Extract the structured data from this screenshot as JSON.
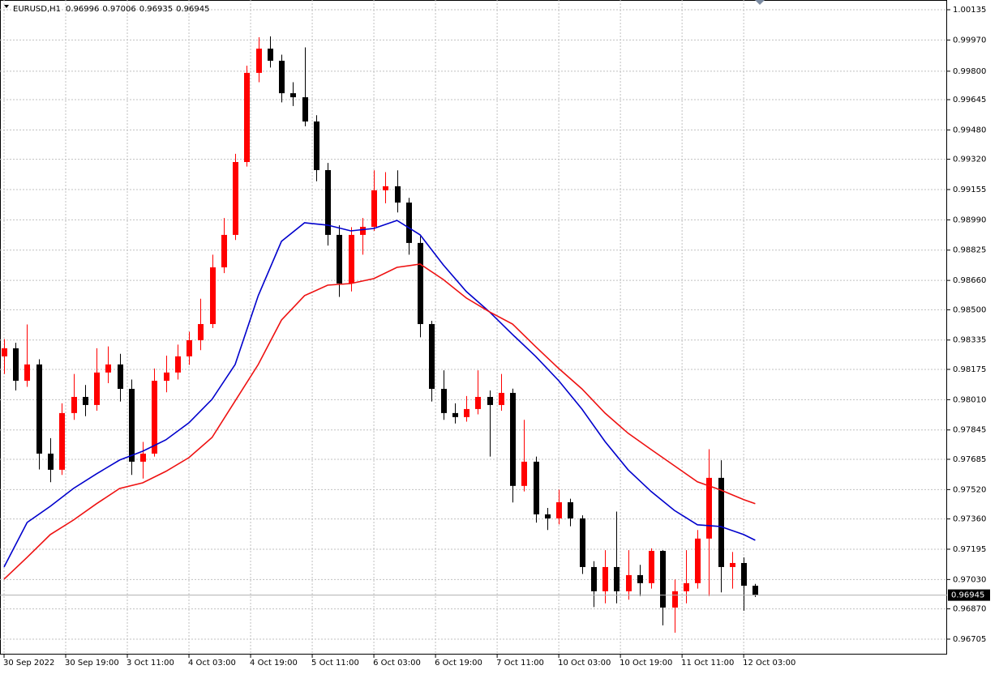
{
  "chart_data": {
    "type": "candlestick",
    "symbol": "EURUSD,H1",
    "up_color": "#ff0000",
    "down_color": "#000000",
    "grid": true,
    "xlim": [
      -1.05,
      244.8
    ],
    "ylim": [
      0.96621,
      1.00188
    ],
    "xticks": [
      {
        "value": 0,
        "label": "30 Sep 2022"
      },
      {
        "value": 16,
        "label": "30 Sep 19:00"
      },
      {
        "value": 32,
        "label": "3 Oct 11:00"
      },
      {
        "value": 48,
        "label": "4 Oct 03:00"
      },
      {
        "value": 64,
        "label": "4 Oct 19:00"
      },
      {
        "value": 80,
        "label": "5 Oct 11:00"
      },
      {
        "value": 96,
        "label": "6 Oct 03:00"
      },
      {
        "value": 112,
        "label": "6 Oct 19:00"
      },
      {
        "value": 128,
        "label": "7 Oct 11:00"
      },
      {
        "value": 144,
        "label": "10 Oct 03:00"
      },
      {
        "value": 160,
        "label": "10 Oct 19:00"
      },
      {
        "value": 176,
        "label": "11 Oct 11:00"
      },
      {
        "value": 192,
        "label": "12 Oct 03:00"
      }
    ],
    "yticks": [
      {
        "value": 1.00135,
        "label": "1.00135"
      },
      {
        "value": 0.9997,
        "label": "0.99970"
      },
      {
        "value": 0.998,
        "label": "0.99800"
      },
      {
        "value": 0.99645,
        "label": "0.99645"
      },
      {
        "value": 0.9948,
        "label": "0.99480"
      },
      {
        "value": 0.9932,
        "label": "0.99320"
      },
      {
        "value": 0.99155,
        "label": "0.99155"
      },
      {
        "value": 0.9899,
        "label": "0.98990"
      },
      {
        "value": 0.98825,
        "label": "0.98825"
      },
      {
        "value": 0.9866,
        "label": "0.98660"
      },
      {
        "value": 0.985,
        "label": "0.98500"
      },
      {
        "value": 0.98335,
        "label": "0.98335"
      },
      {
        "value": 0.98175,
        "label": "0.98175"
      },
      {
        "value": 0.9801,
        "label": "0.98010"
      },
      {
        "value": 0.97845,
        "label": "0.97845"
      },
      {
        "value": 0.97685,
        "label": "0.97685"
      },
      {
        "value": 0.9752,
        "label": "0.97520"
      },
      {
        "value": 0.9736,
        "label": "0.97360"
      },
      {
        "value": 0.97195,
        "label": "0.97195"
      },
      {
        "value": 0.9703,
        "label": "0.97030"
      },
      {
        "value": 0.9687,
        "label": "0.96870"
      },
      {
        "value": 0.96705,
        "label": "0.96705"
      }
    ],
    "x": [
      0,
      3,
      6,
      9,
      12,
      15,
      18,
      21,
      24,
      27,
      30,
      33,
      36,
      39,
      42,
      45,
      48,
      51,
      54,
      57,
      60,
      63,
      66,
      69,
      72,
      75,
      78,
      81,
      84,
      87,
      90,
      93,
      96,
      99,
      102,
      105,
      108,
      111,
      114,
      117,
      120,
      123,
      126,
      129,
      132,
      135,
      138,
      141,
      144,
      147,
      150,
      153,
      156,
      159,
      162,
      165,
      168,
      171,
      174,
      177,
      180,
      183,
      186,
      189,
      192,
      195
    ],
    "open": [
      0.98246,
      0.9829,
      0.98113,
      0.98202,
      0.97716,
      0.97628,
      0.97937,
      0.98025,
      0.97981,
      0.98158,
      0.98202,
      0.98069,
      0.97672,
      0.97716,
      0.98113,
      0.98158,
      0.98246,
      0.98334,
      0.98422,
      0.98731,
      0.98908,
      0.99305,
      0.99791,
      0.99923,
      0.99857,
      0.9968,
      0.99658,
      0.99526,
      0.99261,
      0.98908,
      0.98643,
      0.98908,
      0.98952,
      0.99151,
      0.99173,
      0.99084,
      0.98864,
      0.98422,
      0.98069,
      0.97937,
      0.97915,
      0.97959,
      0.98025,
      0.97981,
      0.98047,
      0.9754,
      0.97672,
      0.97385,
      0.97363,
      0.97451,
      0.97363,
      0.97098,
      0.96966,
      0.97098,
      0.96966,
      0.97054,
      0.9701,
      0.97186,
      0.96877,
      0.96966,
      0.9701,
      0.97253,
      0.97584,
      0.97098,
      0.9712,
      0.96996
    ],
    "high": [
      0.9834,
      0.9832,
      0.9842,
      0.9823,
      0.978,
      0.9799,
      0.9815,
      0.9809,
      0.9829,
      0.983,
      0.9826,
      0.9812,
      0.9778,
      0.9818,
      0.9825,
      0.9831,
      0.9838,
      0.9856,
      0.988,
      0.99,
      0.9935,
      0.9983,
      0.99985,
      0.9999,
      0.9989,
      0.9974,
      0.9993,
      0.9956,
      0.993,
      0.9896,
      0.9895,
      0.99,
      0.9926,
      0.9925,
      0.9926,
      0.9911,
      0.989,
      0.9844,
      0.9817,
      0.9799,
      0.9803,
      0.9817,
      0.9806,
      0.9815,
      0.9807,
      0.979,
      0.977,
      0.9742,
      0.9752,
      0.9747,
      0.9738,
      0.9713,
      0.9719,
      0.974,
      0.9719,
      0.9711,
      0.972,
      0.9719,
      0.9703,
      0.9719,
      0.973,
      0.9774,
      0.9768,
      0.9718,
      0.9715,
      0.97006
    ],
    "low": [
      0.9815,
      0.9806,
      0.9808,
      0.9763,
      0.9756,
      0.976,
      0.979,
      0.9792,
      0.9795,
      0.981,
      0.98,
      0.976,
      0.9758,
      0.977,
      0.9805,
      0.9812,
      0.982,
      0.9828,
      0.984,
      0.987,
      0.9888,
      0.9928,
      0.9974,
      0.9982,
      0.9963,
      0.9961,
      0.995,
      0.992,
      0.9885,
      0.9857,
      0.986,
      0.988,
      0.9893,
      0.9908,
      0.9903,
      0.988,
      0.9835,
      0.98,
      0.979,
      0.9788,
      0.9789,
      0.9793,
      0.977,
      0.9795,
      0.9745,
      0.9751,
      0.9734,
      0.973,
      0.9733,
      0.9732,
      0.9706,
      0.9688,
      0.969,
      0.969,
      0.9692,
      0.9694,
      0.9698,
      0.9678,
      0.9674,
      0.969,
      0.9698,
      0.9694,
      0.9696,
      0.9698,
      0.9686,
      0.96935
    ],
    "close": [
      0.9829,
      0.98113,
      0.98202,
      0.97716,
      0.97628,
      0.97937,
      0.98025,
      0.97981,
      0.98158,
      0.98202,
      0.98069,
      0.97672,
      0.97716,
      0.98113,
      0.98158,
      0.98246,
      0.98334,
      0.98422,
      0.98731,
      0.98908,
      0.99305,
      0.99791,
      0.99923,
      0.99857,
      0.9968,
      0.99658,
      0.99526,
      0.99261,
      0.98908,
      0.98643,
      0.98908,
      0.98952,
      0.99151,
      0.99173,
      0.99084,
      0.98864,
      0.98422,
      0.98069,
      0.97937,
      0.97915,
      0.97959,
      0.98025,
      0.97981,
      0.98047,
      0.9754,
      0.97672,
      0.97385,
      0.97363,
      0.97451,
      0.97363,
      0.97098,
      0.96966,
      0.97098,
      0.96966,
      0.97054,
      0.9701,
      0.97186,
      0.96877,
      0.96966,
      0.9701,
      0.97253,
      0.97584,
      0.97098,
      0.9712,
      0.96996,
      0.96945
    ],
    "series": [
      {
        "color": "#0000cc",
        "x": [
          0,
          6,
          12,
          18,
          24,
          30,
          36,
          42,
          48,
          54,
          60,
          66,
          72,
          78,
          84,
          90,
          96,
          102,
          108,
          114,
          120,
          126,
          132,
          138,
          144,
          150,
          156,
          162,
          168,
          174,
          180,
          186,
          192,
          195
        ],
        "values": [
          0.97098,
          0.97341,
          0.97429,
          0.97526,
          0.97606,
          0.97681,
          0.97729,
          0.97791,
          0.97884,
          0.98012,
          0.98202,
          0.98577,
          0.98873,
          0.98974,
          0.98961,
          0.9893,
          0.98943,
          0.98987,
          0.98908,
          0.98745,
          0.98599,
          0.98489,
          0.98365,
          0.98246,
          0.98113,
          0.97959,
          0.97782,
          0.97628,
          0.97509,
          0.97407,
          0.97328,
          0.97319,
          0.97275,
          0.97244
        ]
      },
      {
        "color": "#ee1111",
        "x": [
          0,
          6,
          12,
          18,
          24,
          30,
          36,
          42,
          48,
          54,
          60,
          66,
          72,
          78,
          84,
          90,
          96,
          102,
          108,
          114,
          120,
          126,
          132,
          138,
          144,
          150,
          156,
          162,
          168,
          174,
          180,
          186,
          192,
          195
        ],
        "values": [
          0.97032,
          0.97151,
          0.97275,
          0.97354,
          0.97443,
          0.97526,
          0.97557,
          0.97619,
          0.97694,
          0.97804,
          0.98003,
          0.98202,
          0.98444,
          0.98577,
          0.98634,
          0.98643,
          0.9867,
          0.98731,
          0.98749,
          0.98665,
          0.98564,
          0.98489,
          0.98422,
          0.98299,
          0.9818,
          0.98069,
          0.97937,
          0.97827,
          0.97738,
          0.9765,
          0.97562,
          0.97518,
          0.97465,
          0.97443
        ]
      }
    ]
  }
}
